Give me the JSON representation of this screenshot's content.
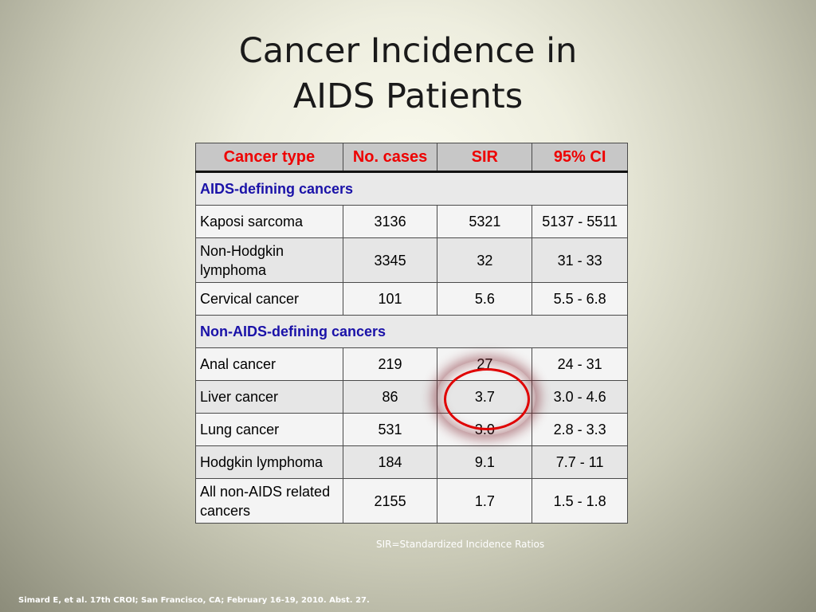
{
  "title": {
    "line1": "Cancer Incidence in",
    "line2": "AIDS Patients"
  },
  "table": {
    "headers": [
      "Cancer type",
      "No. cases",
      "SIR",
      "95% CI"
    ],
    "sections": [
      {
        "label": "AIDS-defining cancers",
        "rows": [
          {
            "name": "Kaposi sarcoma",
            "cases": "3136",
            "sir": "5321",
            "ci": "5137 - 5511"
          },
          {
            "name": "Non-Hodgkin lymphoma",
            "cases": "3345",
            "sir": "32",
            "ci": "31 - 33"
          },
          {
            "name": "Cervical cancer",
            "cases": "101",
            "sir": "5.6",
            "ci": "5.5 - 6.8"
          }
        ]
      },
      {
        "label": "Non-AIDS-defining cancers",
        "rows": [
          {
            "name": "Anal cancer",
            "cases": "219",
            "sir": "27",
            "ci": "24 - 31"
          },
          {
            "name": "Liver cancer",
            "cases": "86",
            "sir": "3.7",
            "ci": "3.0 - 4.6"
          },
          {
            "name": "Lung cancer",
            "cases": "531",
            "sir": "3.0",
            "ci": "2.8 - 3.3"
          },
          {
            "name": "Hodgkin lymphoma",
            "cases": "184",
            "sir": "9.1",
            "ci": "7.7 - 11"
          },
          {
            "name": "All non-AIDS related cancers",
            "cases": "2155",
            "sir": "1.7",
            "ci": "1.5 - 1.8"
          }
        ]
      }
    ]
  },
  "highlight": {
    "row": "Liver cancer",
    "column": "SIR",
    "color": "#e00000"
  },
  "footnote": "SIR=Standardized Incidence Ratios",
  "citation": "Simard E, et al. 17th CROI; San Francisco, CA; February 16-19, 2010. Abst. 27.",
  "colors": {
    "header_text": "#ee0000",
    "section_text": "#1a12a8",
    "header_bg": "#c7c7c7"
  }
}
